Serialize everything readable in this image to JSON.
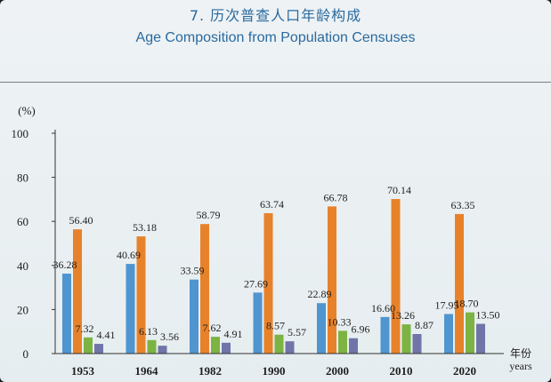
{
  "header": {
    "title_cn": "7. 历次普查人口年龄构成",
    "title_en": "Age Composition from Population Censuses"
  },
  "chart_data": {
    "type": "bar",
    "title": "Age Composition from Population Censuses",
    "ylabel": "(%)",
    "xlabel_cn": "年份",
    "xlabel_en": "years",
    "ylim": [
      0,
      100
    ],
    "yticks": [
      0,
      20,
      40,
      60,
      80,
      100
    ],
    "grid": false,
    "categories": [
      "1953",
      "1964",
      "1982",
      "1990",
      "2000",
      "2010",
      "2020"
    ],
    "series": [
      {
        "values": [
          36.28,
          40.69,
          33.59,
          27.69,
          22.89,
          16.6,
          17.95
        ],
        "color": "#4f95cf"
      },
      {
        "values": [
          56.4,
          53.18,
          58.79,
          63.74,
          66.78,
          70.14,
          63.35
        ],
        "color": "#e8822a"
      },
      {
        "values": [
          7.32,
          6.13,
          7.62,
          8.57,
          10.33,
          13.26,
          18.7
        ],
        "color": "#7cb342"
      },
      {
        "values": [
          4.41,
          3.56,
          4.91,
          5.57,
          6.96,
          8.87,
          13.5
        ],
        "color": "#6f75a8"
      }
    ]
  }
}
